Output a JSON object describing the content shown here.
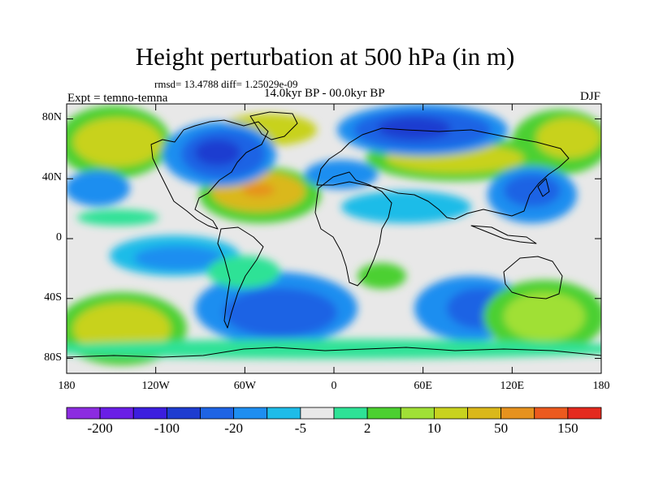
{
  "header": {
    "title": "Height perturbation at 500 hPa (in m)",
    "stats": "rmsd= 13.4788 diff= 1.25029e-09",
    "period": "14.0kyr BP - 00.0kyr BP",
    "experiment": "Expt = temno-temna",
    "season": "DJF"
  },
  "axes": {
    "lat_labels": [
      "80N",
      "40N",
      "0",
      "40S",
      "80S"
    ],
    "lat_values": [
      80,
      40,
      0,
      -40,
      -80
    ],
    "lon_labels": [
      "180",
      "120W",
      "60W",
      "0",
      "60E",
      "120E",
      "180"
    ],
    "lon_values": [
      -180,
      -120,
      -60,
      0,
      60,
      120,
      180
    ],
    "lat_range": [
      -90,
      90
    ],
    "lon_range": [
      -180,
      180
    ]
  },
  "colorbar": {
    "colors": [
      "#8c2ce0",
      "#6a1ee6",
      "#3c1ede",
      "#1e3cd0",
      "#1e64e4",
      "#1e8ef0",
      "#1ebce8",
      "#e8e8e8",
      "#2ee296",
      "#4cd030",
      "#a0e036",
      "#c8d21e",
      "#dab81a",
      "#e6921e",
      "#ec5a1e",
      "#e42a1e"
    ],
    "labels": [
      "-200",
      "-100",
      "-20",
      "-5",
      "2",
      "10",
      "50",
      "150"
    ]
  },
  "field_palette": {
    "background": "#e8e8e8",
    "strong_negative": "#1e3cd0",
    "negative": "#1e64e4",
    "weak_negative": "#1e8ef0",
    "slight_negative": "#1ebce8",
    "slight_positive": "#2ee296",
    "weak_positive": "#4cd030",
    "positive": "#a0e036",
    "strong_positive": "#c8d21e",
    "strongest_positive": "#dab81a",
    "extreme_positive": "#e6921e"
  }
}
